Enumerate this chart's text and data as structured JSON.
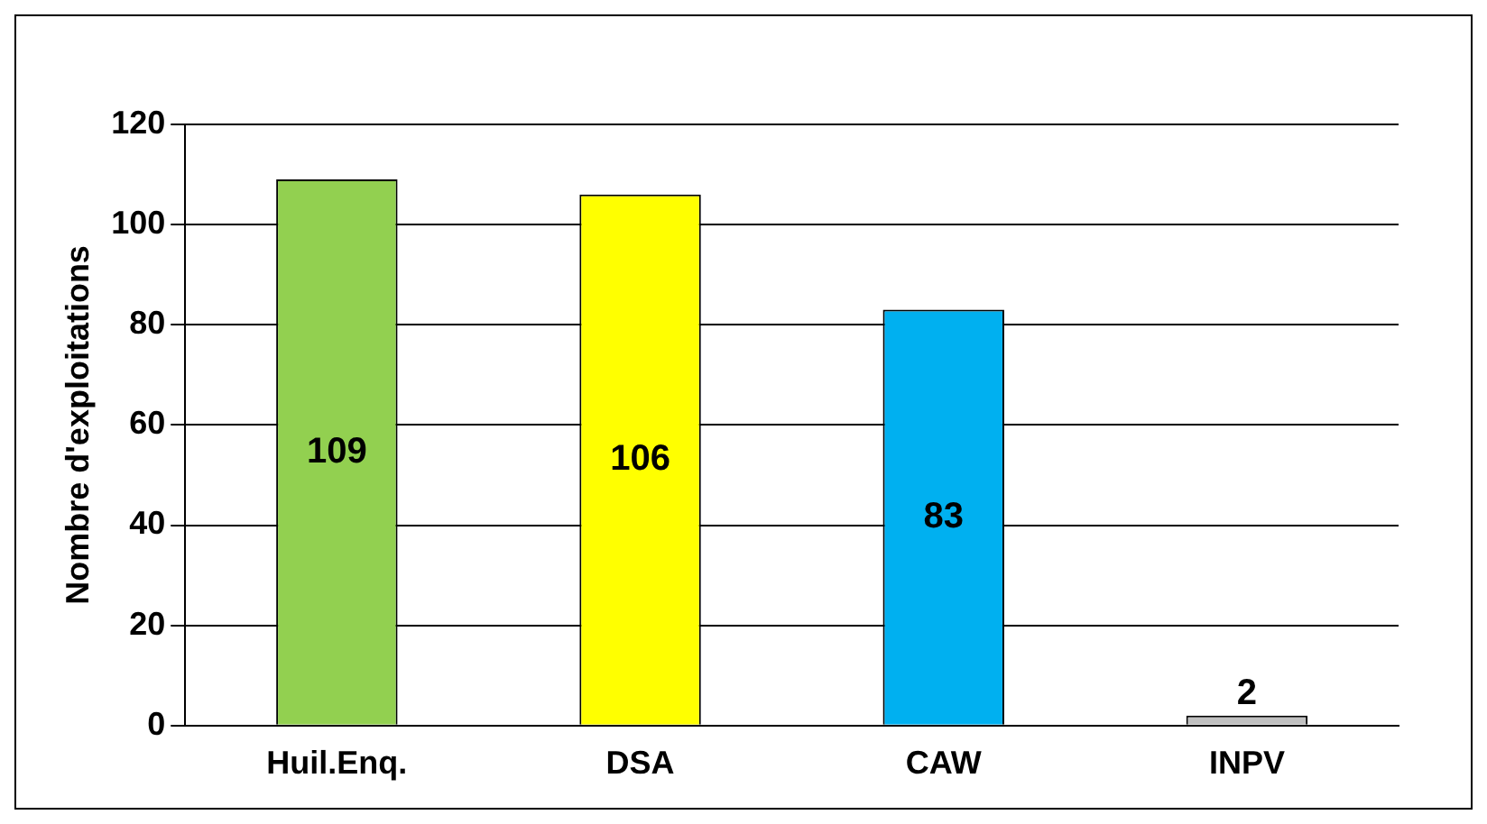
{
  "chart_data": {
    "type": "bar",
    "ylabel": "Nombre d'exploitations",
    "categories": [
      "Huil.Enq.",
      "DSA",
      "CAW",
      "INPV"
    ],
    "values": [
      109,
      106,
      83,
      2
    ],
    "colors": [
      "#92d050",
      "#ffff00",
      "#00b0f0",
      "#c0c0c0"
    ],
    "ylim": [
      0,
      120
    ],
    "yticks": [
      0,
      20,
      40,
      60,
      80,
      100,
      120
    ],
    "grid": "y",
    "data_labels": true
  }
}
